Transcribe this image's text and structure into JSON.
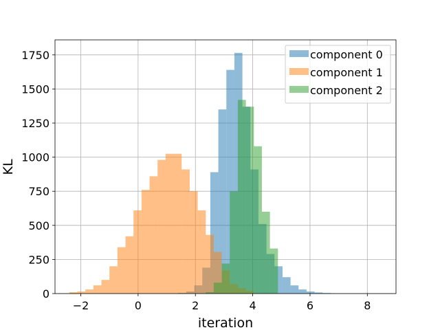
{
  "chart_data": {
    "type": "bar",
    "xlabel": "iteration",
    "ylabel": "KL",
    "xlim": [
      -2.9,
      9.0
    ],
    "ylim": [
      0,
      1860
    ],
    "xticks": [
      -2,
      0,
      2,
      4,
      6,
      8
    ],
    "xtick_labels": [
      "−2",
      "0",
      "2",
      "4",
      "6",
      "8"
    ],
    "yticks": [
      0,
      250,
      500,
      750,
      1000,
      1250,
      1500,
      1750
    ],
    "grid": true,
    "legend_position": "top-right",
    "series": [
      {
        "name": "component 0",
        "color": "#1f77b4",
        "opacity": 0.5,
        "bin_edges": [
          1.4,
          1.68,
          1.96,
          2.24,
          2.52,
          2.8,
          3.08,
          3.36,
          3.64,
          3.92,
          4.2,
          4.48,
          4.76,
          5.04,
          5.32,
          5.6,
          5.88,
          6.16,
          6.44,
          6.72,
          7.0
        ],
        "values": [
          5,
          15,
          60,
          190,
          890,
          1350,
          1640,
          1765,
          1370,
          910,
          510,
          290,
          200,
          120,
          60,
          30,
          15,
          8,
          4,
          2
        ]
      },
      {
        "name": "component 1",
        "color": "#ff7f0e",
        "opacity": 0.5,
        "bin_edges": [
          -2.4,
          -2.12,
          -1.84,
          -1.56,
          -1.28,
          -1.0,
          -0.72,
          -0.44,
          -0.16,
          0.12,
          0.4,
          0.68,
          0.96,
          1.24,
          1.52,
          1.8,
          2.08,
          2.36,
          2.64,
          2.92,
          3.2,
          3.48,
          3.76,
          4.04
        ],
        "values": [
          10,
          15,
          30,
          60,
          100,
          200,
          340,
          420,
          610,
          760,
          860,
          980,
          1025,
          1025,
          910,
          750,
          610,
          430,
          305,
          170,
          70,
          40,
          20
        ]
      },
      {
        "name": "component 2",
        "color": "#2ca02c",
        "opacity": 0.5,
        "bin_edges": [
          2.36,
          2.64,
          2.92,
          3.2,
          3.48,
          3.76,
          4.04,
          4.32,
          4.6,
          4.88
        ],
        "values": [
          10,
          80,
          220,
          750,
          1420,
          1370,
          1080,
          600,
          330
        ]
      }
    ]
  }
}
